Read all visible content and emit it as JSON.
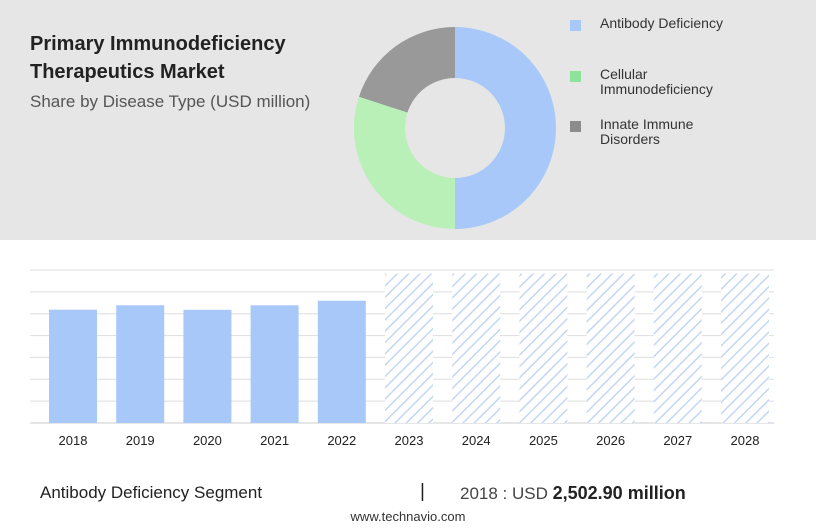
{
  "header": {
    "title": "Primary Immunodeficiency Therapeutics Market",
    "subtitle": "Share by Disease Type (USD million)"
  },
  "legend": [
    {
      "label": "Antibody Deficiency",
      "color": "#a8c8fa"
    },
    {
      "label": "Cellular Immunodeficiency",
      "color": "#8ee29a"
    },
    {
      "label": "Innate Immune Disorders",
      "color": "#8c8c8c"
    }
  ],
  "chart_data": [
    {
      "type": "pie",
      "categories": [
        "Antibody Deficiency",
        "Cellular Immunodeficiency",
        "Innate Immune Disorders"
      ],
      "values": [
        50,
        30,
        20
      ],
      "colors": [
        "#a8c8fa",
        "#b8f0b8",
        "#999999"
      ]
    },
    {
      "type": "bar",
      "categories": [
        "2018",
        "2019",
        "2020",
        "2021",
        "2022",
        "2023",
        "2024",
        "2025",
        "2026",
        "2027",
        "2028"
      ],
      "values": [
        2502.9,
        2600,
        2500,
        2600,
        2700,
        3300,
        3300,
        3300,
        3300,
        3300,
        3300
      ],
      "forecast_from": "2023",
      "ylim": [
        0,
        3600
      ],
      "grid": true,
      "bar_color": "#a8c8fa",
      "forecast_color": "#c4d6f3"
    }
  ],
  "footer": {
    "segment": "Antibody Deficiency Segment",
    "separator": "|",
    "year_label": "2018 : USD",
    "value": "2,502.90 million"
  },
  "source": "www.technavio.com"
}
